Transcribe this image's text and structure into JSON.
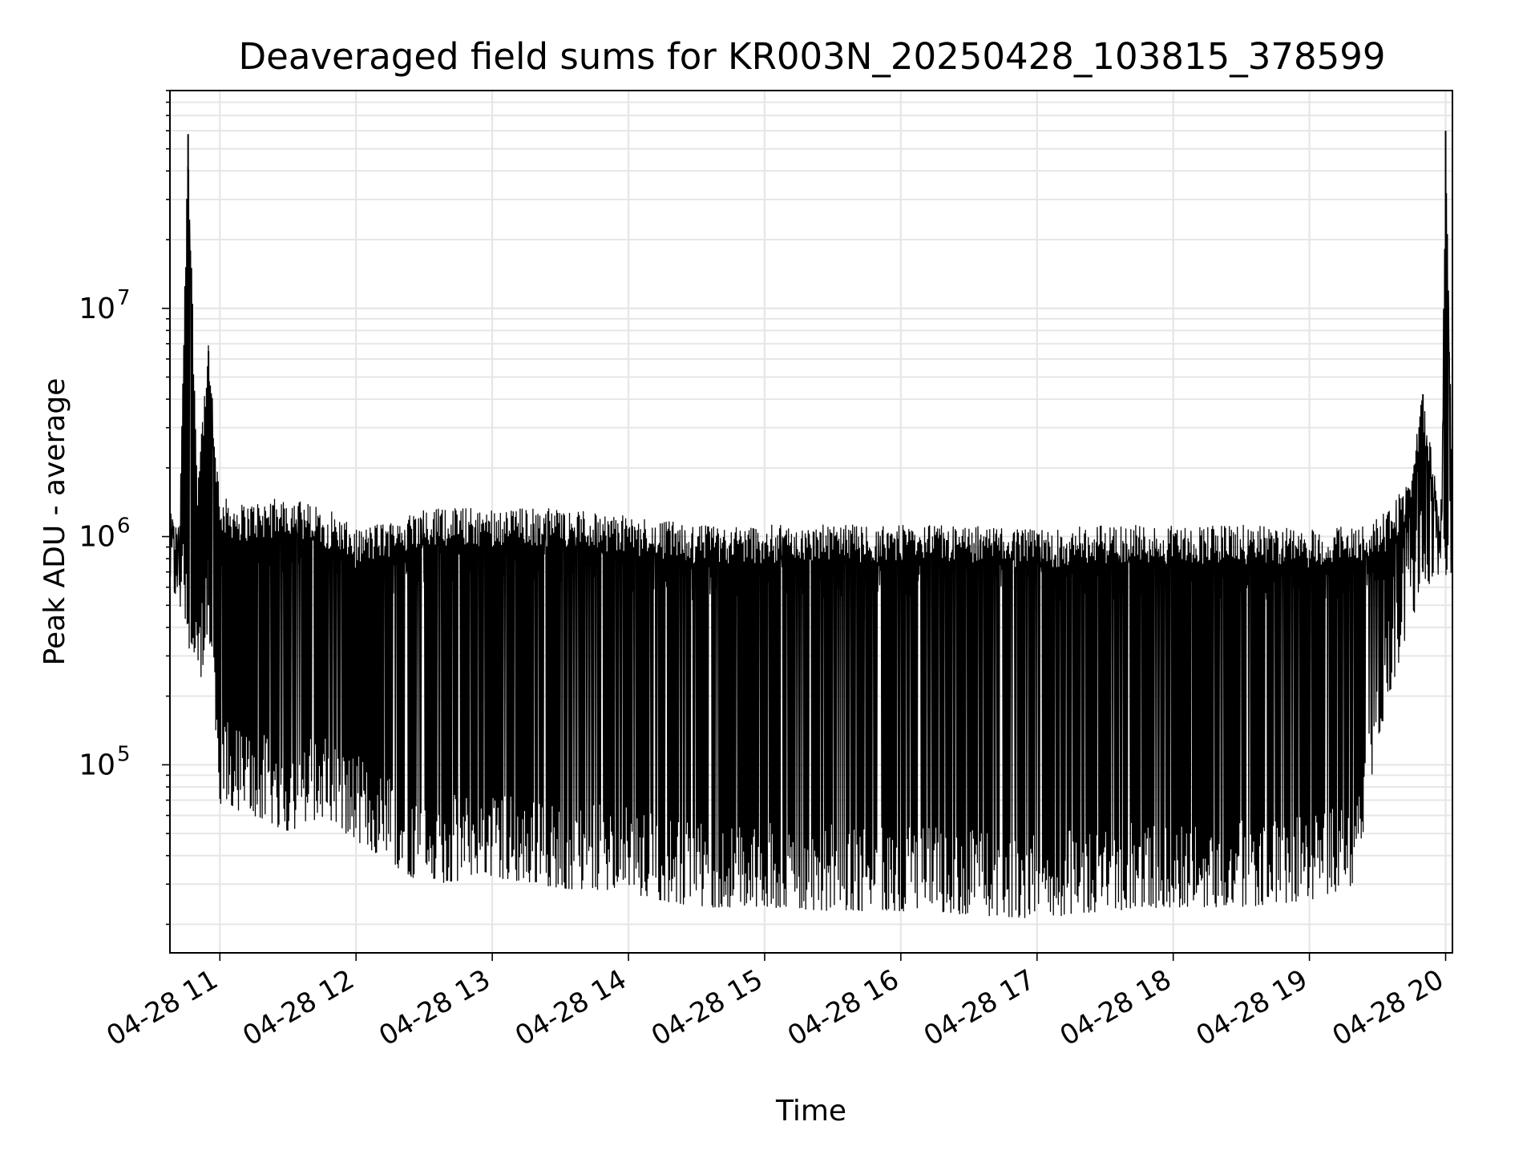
{
  "chart_data": {
    "type": "line",
    "title": "Deaveraged field sums for KR003N_20250428_103815_378599",
    "xlabel": "Time",
    "ylabel": "Peak ADU - average",
    "yscale": "log",
    "grid": true,
    "grid_minor": true,
    "legend": "none",
    "x_range": [
      "2025-04-28 10:38",
      "2025-04-28 20:03"
    ],
    "ylim": [
      15000,
      90000000
    ],
    "x_ticks": [
      "04-28 11",
      "04-28 12",
      "04-28 13",
      "04-28 14",
      "04-28 15",
      "04-28 16",
      "04-28 17",
      "04-28 18",
      "04-28 19",
      "04-28 20"
    ],
    "y_ticks": [
      {
        "value": 100000,
        "base": "10",
        "exp": "5"
      },
      {
        "value": 1000000,
        "base": "10",
        "exp": "6"
      },
      {
        "value": 10000000,
        "base": "10",
        "exp": "7"
      }
    ],
    "series": [
      {
        "color": "#000000",
        "envelope_upper": [
          {
            "x": "10:38",
            "y": 1200000
          },
          {
            "x": "10:42",
            "y": 1000000
          },
          {
            "x": "10:46",
            "y": 58000000
          },
          {
            "x": "10:50",
            "y": 1800000
          },
          {
            "x": "10:55",
            "y": 6500000
          },
          {
            "x": "11:00",
            "y": 1400000
          },
          {
            "x": "11:10",
            "y": 1300000
          },
          {
            "x": "11:30",
            "y": 1400000
          },
          {
            "x": "11:50",
            "y": 1200000
          },
          {
            "x": "12:00",
            "y": 1000000
          },
          {
            "x": "12:30",
            "y": 1250000
          },
          {
            "x": "13:00",
            "y": 1250000
          },
          {
            "x": "13:30",
            "y": 1250000
          },
          {
            "x": "14:00",
            "y": 1150000
          },
          {
            "x": "14:30",
            "y": 1050000
          },
          {
            "x": "15:00",
            "y": 1050000
          },
          {
            "x": "15:30",
            "y": 1050000
          },
          {
            "x": "16:00",
            "y": 1050000
          },
          {
            "x": "16:30",
            "y": 1050000
          },
          {
            "x": "17:00",
            "y": 1000000
          },
          {
            "x": "17:30",
            "y": 1050000
          },
          {
            "x": "18:00",
            "y": 1050000
          },
          {
            "x": "18:30",
            "y": 1050000
          },
          {
            "x": "19:00",
            "y": 1000000
          },
          {
            "x": "19:20",
            "y": 1050000
          },
          {
            "x": "19:35",
            "y": 1200000
          },
          {
            "x": "19:45",
            "y": 1800000
          },
          {
            "x": "19:50",
            "y": 4200000
          },
          {
            "x": "19:55",
            "y": 1900000
          },
          {
            "x": "19:58",
            "y": 1000000
          },
          {
            "x": "20:00",
            "y": 60000000
          },
          {
            "x": "20:03",
            "y": 2000000
          }
        ],
        "envelope_lower": [
          {
            "x": "10:38",
            "y": 700000
          },
          {
            "x": "10:45",
            "y": 500000
          },
          {
            "x": "10:50",
            "y": 200000
          },
          {
            "x": "10:55",
            "y": 500000
          },
          {
            "x": "11:00",
            "y": 80000
          },
          {
            "x": "11:15",
            "y": 70000
          },
          {
            "x": "11:30",
            "y": 60000
          },
          {
            "x": "11:45",
            "y": 70000
          },
          {
            "x": "12:00",
            "y": 55000
          },
          {
            "x": "12:30",
            "y": 35000
          },
          {
            "x": "13:00",
            "y": 38000
          },
          {
            "x": "13:30",
            "y": 34000
          },
          {
            "x": "14:00",
            "y": 32000
          },
          {
            "x": "14:30",
            "y": 28000
          },
          {
            "x": "15:00",
            "y": 28000
          },
          {
            "x": "15:30",
            "y": 27000
          },
          {
            "x": "16:00",
            "y": 27000
          },
          {
            "x": "16:30",
            "y": 26000
          },
          {
            "x": "17:00",
            "y": 25000
          },
          {
            "x": "17:30",
            "y": 27000
          },
          {
            "x": "18:00",
            "y": 28000
          },
          {
            "x": "18:30",
            "y": 28000
          },
          {
            "x": "19:00",
            "y": 30000
          },
          {
            "x": "19:20",
            "y": 35000
          },
          {
            "x": "19:30",
            "y": 150000
          },
          {
            "x": "19:40",
            "y": 350000
          },
          {
            "x": "19:50",
            "y": 700000
          },
          {
            "x": "20:00",
            "y": 800000
          }
        ],
        "spikes": [
          {
            "x": "10:46",
            "y": 58000000
          },
          {
            "x": "10:55",
            "y": 6500000
          },
          {
            "x": "10:56",
            "y": 3800000
          },
          {
            "x": "19:50",
            "y": 4200000
          },
          {
            "x": "20:00",
            "y": 60000000
          }
        ]
      }
    ]
  }
}
